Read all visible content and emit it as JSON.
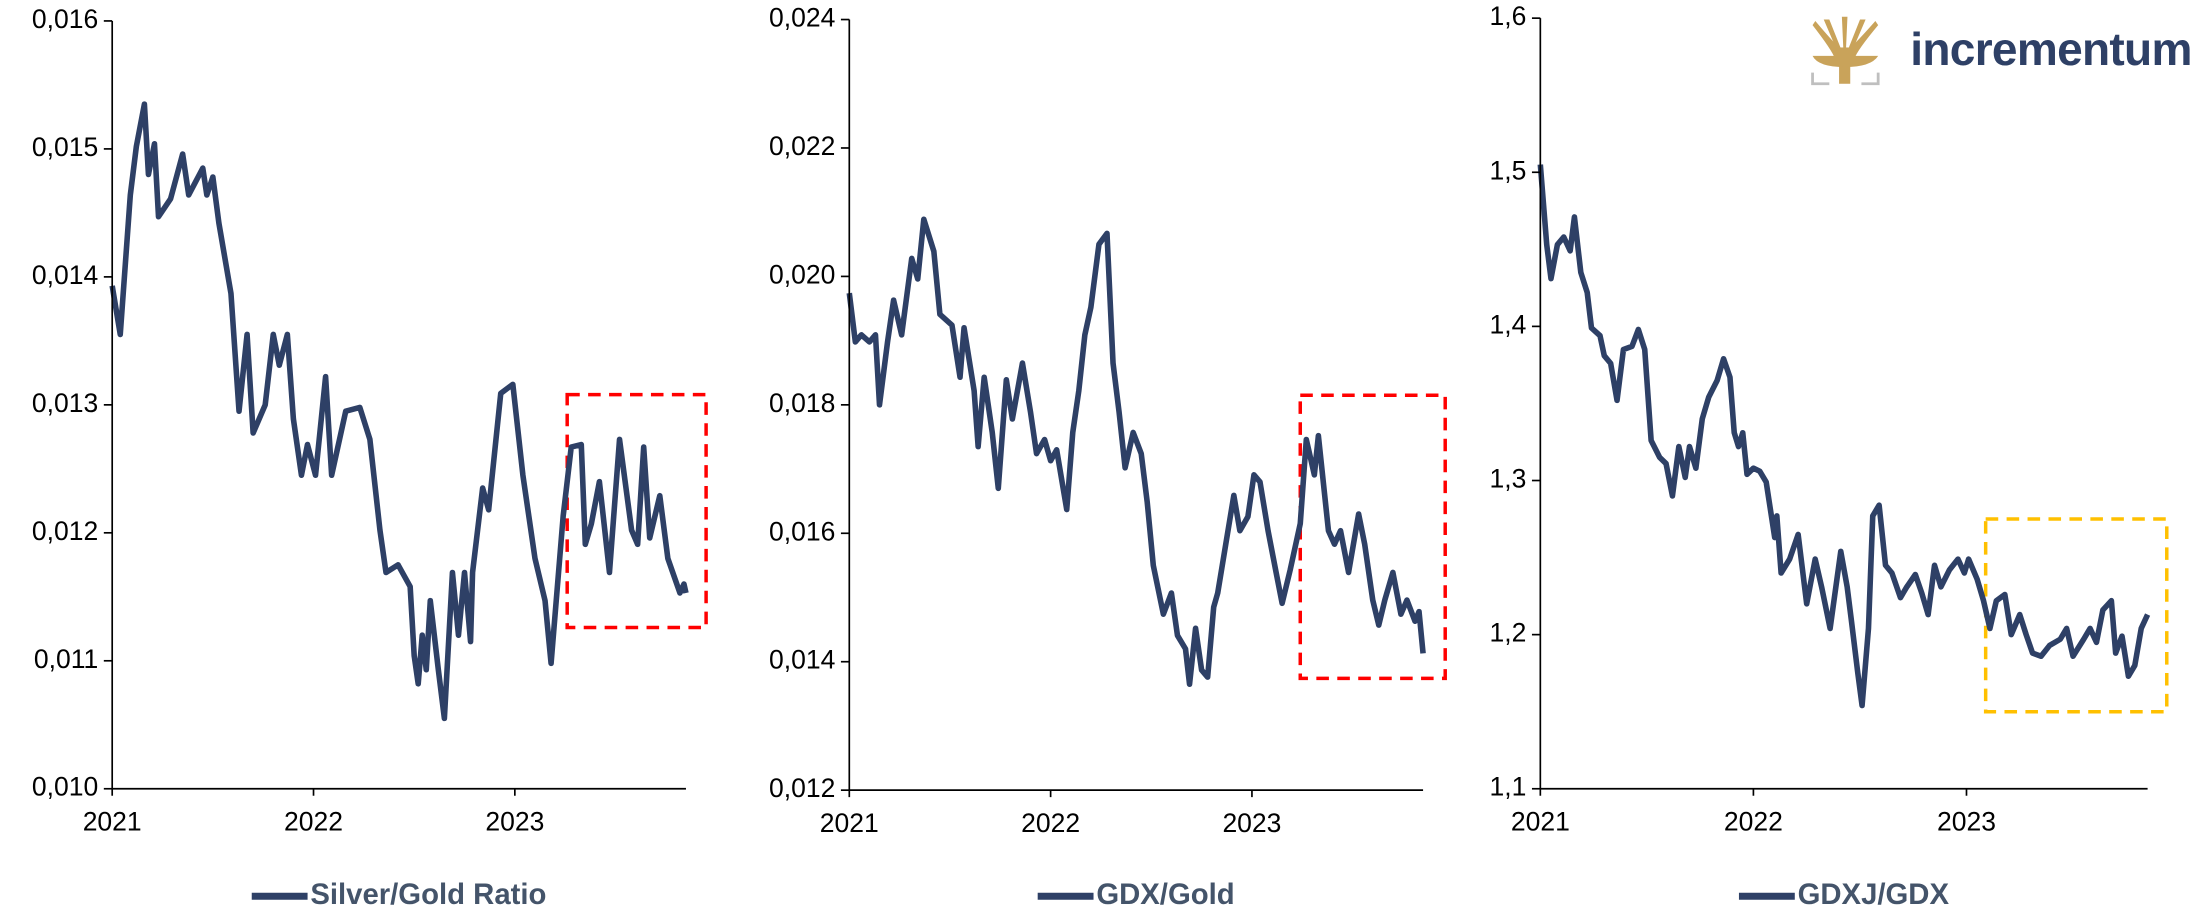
{
  "logo": "incrementum",
  "chart_data": [
    {
      "type": "line",
      "x": [
        2021.0,
        2021.04,
        2021.09,
        2021.12,
        2021.16,
        2021.18,
        2021.21,
        2021.23,
        2021.29,
        2021.35,
        2021.38,
        2021.45,
        2021.47,
        2021.5,
        2021.53,
        2021.59,
        2021.63,
        2021.67,
        2021.7,
        2021.76,
        2021.8,
        2021.83,
        2021.87,
        2021.9,
        2021.94,
        2021.97,
        2022.01,
        2022.06,
        2022.09,
        2022.16,
        2022.23,
        2022.28,
        2022.33,
        2022.36,
        2022.42,
        2022.48,
        2022.5,
        2022.52,
        2022.54,
        2022.56,
        2022.58,
        2022.62,
        2022.65,
        2022.69,
        2022.72,
        2022.75,
        2022.78,
        2022.79,
        2022.84,
        2022.87,
        2022.93,
        2022.99,
        2023.04,
        2023.1,
        2023.15,
        2023.18,
        2023.24,
        2023.28,
        2023.33,
        2023.35,
        2023.38,
        2023.42,
        2023.47,
        2023.52,
        2023.58,
        2023.61,
        2023.64,
        2023.67,
        2023.72,
        2023.76,
        2023.82,
        2023.84,
        2023.85
      ],
      "series": [
        {
          "name": "Silver/Gold Ratio",
          "color": "#2e4066",
          "values": [
            0.01393,
            0.01355,
            0.01464,
            0.01502,
            0.01535,
            0.0148,
            0.01504,
            0.01447,
            0.01461,
            0.01496,
            0.01464,
            0.01485,
            0.01464,
            0.01478,
            0.01442,
            0.01387,
            0.01295,
            0.01355,
            0.01278,
            0.013,
            0.01355,
            0.01331,
            0.01355,
            0.01289,
            0.01245,
            0.01269,
            0.01245,
            0.01322,
            0.01245,
            0.01295,
            0.01298,
            0.01273,
            0.01202,
            0.01169,
            0.01175,
            0.01158,
            0.01104,
            0.01082,
            0.0112,
            0.01093,
            0.01147,
            0.01093,
            0.01055,
            0.01169,
            0.0112,
            0.01169,
            0.01115,
            0.01169,
            0.01235,
            0.01218,
            0.01309,
            0.01316,
            0.01245,
            0.0118,
            0.01147,
            0.01098,
            0.01213,
            0.01267,
            0.01269,
            0.01191,
            0.01207,
            0.0124,
            0.01169,
            0.01273,
            0.01202,
            0.01191,
            0.01267,
            0.01196,
            0.01229,
            0.0118,
            0.01153,
            0.0116,
            0.01153
          ]
        }
      ],
      "xlim": [
        2021,
        2023.85
      ],
      "xticks": [
        2021,
        2022,
        2023
      ],
      "ylim": [
        0.01,
        0.016
      ],
      "yticks": [
        {
          "value": 0.01,
          "label": "0,010"
        },
        {
          "value": 0.011,
          "label": "0,011"
        },
        {
          "value": 0.012,
          "label": "0,012"
        },
        {
          "value": 0.013,
          "label": "0,013"
        },
        {
          "value": 0.014,
          "label": "0,014"
        },
        {
          "value": 0.015,
          "label": "0,015"
        },
        {
          "value": 0.016,
          "label": "0,016"
        }
      ],
      "highlight": {
        "x": [
          2023.26,
          2023.95
        ],
        "y": [
          0.01126,
          0.01308
        ],
        "color": "#ff0000"
      }
    },
    {
      "type": "line",
      "x": [
        2021.0,
        2021.03,
        2021.06,
        2021.1,
        2021.13,
        2021.15,
        2021.19,
        2021.22,
        2021.26,
        2021.31,
        2021.34,
        2021.37,
        2021.42,
        2021.45,
        2021.51,
        2021.55,
        2021.57,
        2021.62,
        2021.64,
        2021.67,
        2021.71,
        2021.74,
        2021.78,
        2021.81,
        2021.86,
        2021.9,
        2021.93,
        2021.97,
        2022.0,
        2022.03,
        2022.08,
        2022.11,
        2022.14,
        2022.17,
        2022.2,
        2022.24,
        2022.28,
        2022.31,
        2022.34,
        2022.37,
        2022.41,
        2022.45,
        2022.48,
        2022.51,
        2022.56,
        2022.6,
        2022.63,
        2022.67,
        2022.69,
        2022.72,
        2022.75,
        2022.78,
        2022.81,
        2022.83,
        2022.87,
        2022.91,
        2022.94,
        2022.98,
        2023.01,
        2023.04,
        2023.08,
        2023.12,
        2023.15,
        2023.19,
        2023.24,
        2023.27,
        2023.31,
        2023.33,
        2023.38,
        2023.41,
        2023.44,
        2023.48,
        2023.53,
        2023.56,
        2023.6,
        2023.63,
        2023.66,
        2023.7,
        2023.74,
        2023.77,
        2023.81,
        2023.83,
        2023.85
      ],
      "series": [
        {
          "name": "GDX/Gold",
          "color": "#2e4066",
          "values": [
            0.01974,
            0.01898,
            0.01909,
            0.01898,
            0.01909,
            0.018,
            0.01898,
            0.01963,
            0.01909,
            0.02028,
            0.01996,
            0.02089,
            0.02039,
            0.01941,
            0.01924,
            0.01843,
            0.0192,
            0.01822,
            0.01735,
            0.01843,
            0.01757,
            0.0167,
            0.01839,
            0.01778,
            0.01865,
            0.01789,
            0.01724,
            0.01746,
            0.01713,
            0.0173,
            0.01637,
            0.01757,
            0.01822,
            0.01909,
            0.01952,
            0.0205,
            0.02067,
            0.01865,
            0.01789,
            0.01702,
            0.01757,
            0.01724,
            0.01648,
            0.0155,
            0.01474,
            0.01507,
            0.01441,
            0.0142,
            0.01365,
            0.01452,
            0.01387,
            0.01376,
            0.01485,
            0.01507,
            0.01583,
            0.01659,
            0.01604,
            0.01626,
            0.01691,
            0.0168,
            0.01604,
            0.01539,
            0.01491,
            0.01543,
            0.01615,
            0.01746,
            0.01691,
            0.01752,
            0.01604,
            0.01583,
            0.01604,
            0.01539,
            0.0163,
            0.01583,
            0.01496,
            0.01457,
            0.01496,
            0.01539,
            0.01474,
            0.01496,
            0.01463,
            0.01478,
            0.01413
          ]
        }
      ],
      "xlim": [
        2021,
        2023.85
      ],
      "xticks": [
        2021,
        2022,
        2023
      ],
      "ylim": [
        0.012,
        0.024
      ],
      "yticks": [
        {
          "value": 0.012,
          "label": "0,012"
        },
        {
          "value": 0.014,
          "label": "0,014"
        },
        {
          "value": 0.016,
          "label": "0,016"
        },
        {
          "value": 0.018,
          "label": "0,018"
        },
        {
          "value": 0.02,
          "label": "0,020"
        },
        {
          "value": 0.022,
          "label": "0,022"
        },
        {
          "value": 0.024,
          "label": "0,024"
        }
      ],
      "highlight": {
        "x": [
          2023.24,
          2023.96
        ],
        "y": [
          0.01374,
          0.01815
        ],
        "color": "#ff0000"
      }
    },
    {
      "type": "line",
      "x": [
        2021.0,
        2021.03,
        2021.05,
        2021.08,
        2021.11,
        2021.14,
        2021.16,
        2021.19,
        2021.22,
        2021.24,
        2021.28,
        2021.3,
        2021.33,
        2021.36,
        2021.39,
        2021.43,
        2021.46,
        2021.49,
        2021.52,
        2021.56,
        2021.59,
        2021.62,
        2021.65,
        2021.68,
        2021.7,
        2021.73,
        2021.76,
        2021.79,
        2021.83,
        2021.86,
        2021.89,
        2021.91,
        2021.93,
        2021.95,
        2021.97,
        2022.0,
        2022.03,
        2022.06,
        2022.1,
        2022.11,
        2022.13,
        2022.17,
        2022.21,
        2022.25,
        2022.29,
        2022.32,
        2022.36,
        2022.41,
        2022.44,
        2022.46,
        2022.49,
        2022.51,
        2022.54,
        2022.56,
        2022.59,
        2022.62,
        2022.65,
        2022.69,
        2022.72,
        2022.76,
        2022.79,
        2022.82,
        2022.85,
        2022.88,
        2022.92,
        2022.96,
        2022.99,
        2023.01,
        2023.05,
        2023.08,
        2023.11,
        2023.14,
        2023.18,
        2023.21,
        2023.25,
        2023.28,
        2023.31,
        2023.35,
        2023.39,
        2023.44,
        2023.47,
        2023.5,
        2023.55,
        2023.58,
        2023.61,
        2023.64,
        2023.68,
        2023.7,
        2023.73,
        2023.76,
        2023.79,
        2023.82,
        2023.85
      ],
      "series": [
        {
          "name": "GDXJ/GDX",
          "color": "#2e4066",
          "values": [
            1.505,
            1.453,
            1.431,
            1.453,
            1.458,
            1.449,
            1.471,
            1.435,
            1.422,
            1.399,
            1.394,
            1.381,
            1.376,
            1.352,
            1.385,
            1.387,
            1.398,
            1.385,
            1.326,
            1.315,
            1.311,
            1.29,
            1.322,
            1.302,
            1.322,
            1.308,
            1.34,
            1.354,
            1.365,
            1.379,
            1.367,
            1.331,
            1.322,
            1.331,
            1.304,
            1.308,
            1.306,
            1.299,
            1.263,
            1.277,
            1.24,
            1.249,
            1.265,
            1.22,
            1.249,
            1.231,
            1.204,
            1.254,
            1.231,
            1.209,
            1.175,
            1.154,
            1.204,
            1.277,
            1.284,
            1.245,
            1.24,
            1.224,
            1.231,
            1.239,
            1.227,
            1.213,
            1.245,
            1.231,
            1.242,
            1.249,
            1.24,
            1.249,
            1.236,
            1.222,
            1.204,
            1.222,
            1.226,
            1.2,
            1.213,
            1.2,
            1.188,
            1.186,
            1.193,
            1.197,
            1.204,
            1.186,
            1.197,
            1.204,
            1.195,
            1.216,
            1.222,
            1.188,
            1.199,
            1.173,
            1.18,
            1.204,
            1.213
          ]
        }
      ],
      "xlim": [
        2021,
        2023.85
      ],
      "xticks": [
        2021,
        2022,
        2023
      ],
      "ylim": [
        1.1,
        1.6
      ],
      "yticks": [
        {
          "value": 1.1,
          "label": "1,1"
        },
        {
          "value": 1.2,
          "label": "1,2"
        },
        {
          "value": 1.3,
          "label": "1,3"
        },
        {
          "value": 1.4,
          "label": "1,4"
        },
        {
          "value": 1.5,
          "label": "1,5"
        },
        {
          "value": 1.6,
          "label": "1,6"
        }
      ],
      "highlight": {
        "x": [
          2023.09,
          2023.94
        ],
        "y": [
          1.15,
          1.275
        ],
        "color": "#ffc000"
      }
    }
  ]
}
